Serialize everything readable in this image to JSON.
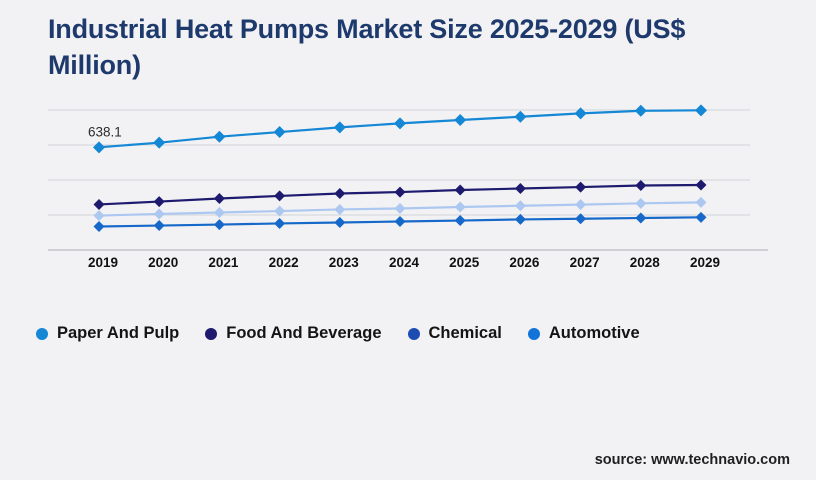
{
  "title": "Industrial Heat Pumps Market Size 2025-2029 (US$ Million)",
  "source": "source: www.technavio.com",
  "colors": {
    "background": "#f2f2f5",
    "title": "#1e3a6c",
    "gridline": "#d8dadf",
    "axis_line": "#c2c4ca",
    "tick_text": "#111111",
    "annotation_text": "#2b2b2b"
  },
  "chart_data": {
    "type": "line",
    "x": [
      "2019",
      "2020",
      "2021",
      "2022",
      "2023",
      "2024",
      "2025",
      "2026",
      "2027",
      "2028",
      "2029"
    ],
    "series": [
      {
        "name": "Paper And Pulp",
        "color": "#1487d5",
        "legend_color": "#1487d5",
        "values": [
          638.1,
          667,
          704,
          733,
          762,
          787,
          808,
          828,
          849,
          865,
          868
        ]
      },
      {
        "name": "Food And Beverage",
        "color": "#1e1a6e",
        "legend_color": "#1e1a6e",
        "values": [
          283,
          301,
          320,
          336,
          351,
          360,
          373,
          382,
          391,
          401,
          404
        ]
      },
      {
        "name": "Chemical",
        "color": "#acc8f1",
        "legend_color": "#1b4db2",
        "values": [
          214,
          224,
          233,
          242,
          252,
          258,
          267,
          275,
          282,
          290,
          296
        ]
      },
      {
        "name": "Automotive",
        "color": "#1668c9",
        "legend_color": "#1273d9",
        "values": [
          146,
          152,
          158,
          165,
          171,
          177,
          183,
          190,
          194,
          199,
          203
        ]
      }
    ],
    "annotation": {
      "series": "Paper And Pulp",
      "x": "2019",
      "label": "638.1"
    },
    "title": "Industrial Heat Pumps Market Size 2025-2029 (US$ Million)",
    "xlabel": "",
    "ylabel": "",
    "ylim": [
      0,
      870
    ],
    "y_axis_labels_visible": false,
    "grid": "horizontal",
    "legend_position": "bottom"
  }
}
